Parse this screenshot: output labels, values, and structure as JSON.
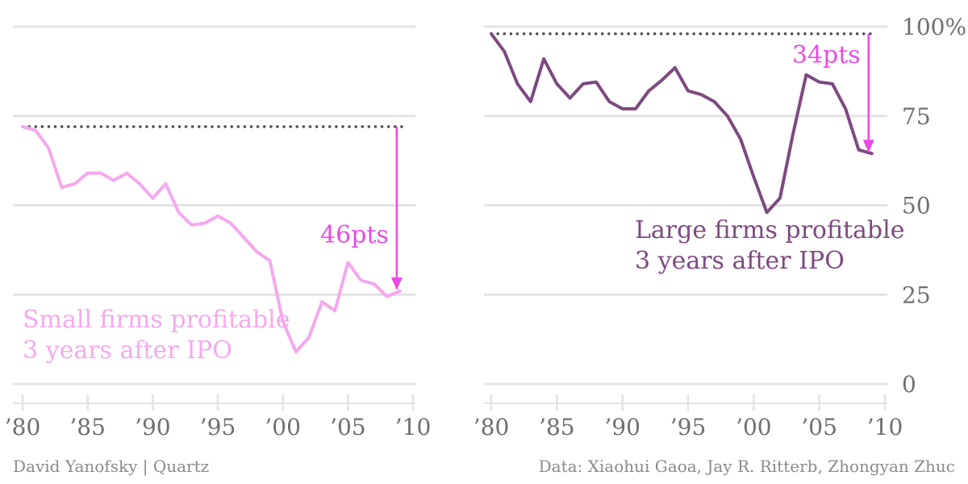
{
  "colors": {
    "small": "#f6a8ee",
    "large": "#7d4a80",
    "arrow": "#e94be6",
    "grid": "#e3e3e3",
    "tick_text": "#6f6f6f",
    "dots": "#4f4f4f"
  },
  "credits": {
    "author": "David Yanofsky | Quartz",
    "source": "Data: Xiaohui Gaoa, Jay R. Ritterb, Zhongyan Zhuc"
  },
  "chart_data": [
    {
      "type": "line",
      "panel": "left",
      "x_tick_labels": [
        "’80",
        "’85",
        "’90",
        "’95",
        "’00",
        "’05",
        "’10"
      ],
      "x_ticks": [
        1980,
        1985,
        1990,
        1995,
        2000,
        2005,
        2010
      ],
      "xlim": [
        1980,
        2010
      ],
      "ylim": [
        0,
        100
      ],
      "series": [
        {
          "name": "Small firms profitable 3 years after IPO",
          "label_lines": [
            "Small firms profitable",
            "3 years after IPO"
          ],
          "x": [
            1980,
            1981,
            1982,
            1983,
            1984,
            1985,
            1986,
            1987,
            1988,
            1989,
            1990,
            1991,
            1992,
            1993,
            1994,
            1995,
            1996,
            1997,
            1998,
            1999,
            2000,
            2001,
            2002,
            2003,
            2004,
            2005,
            2006,
            2007,
            2008,
            2009
          ],
          "y": [
            72,
            71,
            66,
            55,
            56,
            59,
            59,
            57,
            59,
            56,
            52,
            56,
            48,
            44.5,
            45,
            47,
            45,
            41,
            37,
            34.5,
            17.5,
            9,
            13,
            23,
            20.5,
            34,
            29,
            28,
            24.5,
            26
          ]
        }
      ],
      "reference_line": {
        "y": 72
      },
      "annotation": {
        "text": "46pts",
        "x": 2009,
        "from": 72,
        "to": 26
      }
    },
    {
      "type": "line",
      "panel": "right",
      "x_tick_labels": [
        "’80",
        "’85",
        "’90",
        "’95",
        "’00",
        "’05",
        "’10"
      ],
      "x_ticks": [
        1980,
        1985,
        1990,
        1995,
        2000,
        2005,
        2010
      ],
      "xlim": [
        1980,
        2010
      ],
      "ylim": [
        0,
        100
      ],
      "y_ticks": [
        0,
        25,
        50,
        75,
        100
      ],
      "y_tick_labels": [
        "0",
        "25",
        "50",
        "75",
        "100%"
      ],
      "series": [
        {
          "name": "Large firms profitable 3 years after IPO",
          "label_lines": [
            "Large firms profitable",
            "3 years after IPO"
          ],
          "x": [
            1980,
            1981,
            1982,
            1983,
            1984,
            1985,
            1986,
            1987,
            1988,
            1989,
            1990,
            1991,
            1992,
            1993,
            1994,
            1995,
            1996,
            1997,
            1998,
            1999,
            2000,
            2001,
            2002,
            2003,
            2004,
            2005,
            2006,
            2007,
            2008,
            2009
          ],
          "y": [
            98,
            93,
            84,
            79,
            91,
            84,
            80,
            84,
            84.5,
            79,
            77,
            77,
            82,
            85,
            88.5,
            82,
            81,
            79,
            75,
            68.5,
            58,
            48,
            52,
            70,
            86.5,
            84.5,
            84,
            77,
            65.5,
            64.5
          ]
        }
      ],
      "reference_line": {
        "y": 98
      },
      "annotation": {
        "text": "34pts",
        "x": 2009,
        "from": 98,
        "to": 64.5
      }
    }
  ]
}
